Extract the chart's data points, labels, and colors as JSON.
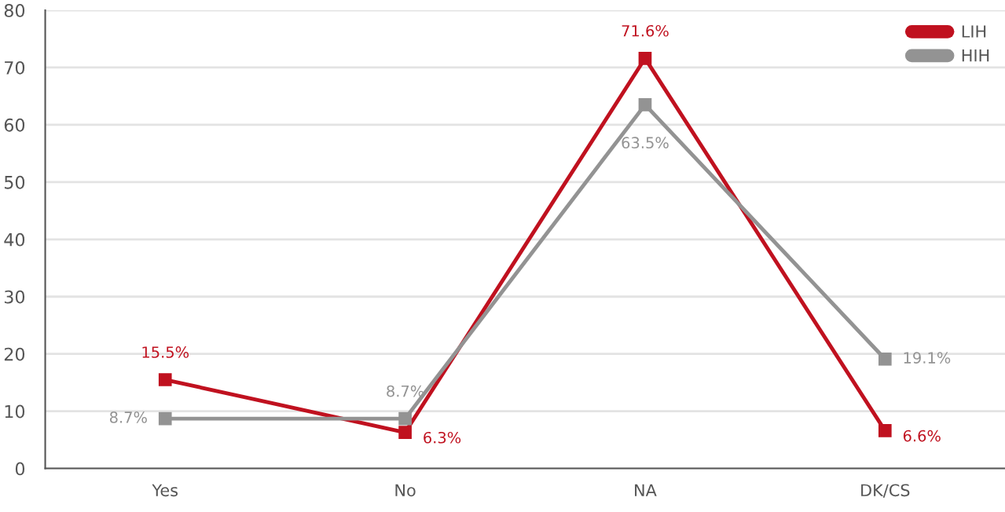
{
  "chart_data": {
    "type": "line",
    "categories": [
      "Yes",
      "No",
      "NA",
      "DK/CS"
    ],
    "series": [
      {
        "name": "LIH",
        "color": "#c0111f",
        "values": [
          15.5,
          6.3,
          71.6,
          6.6
        ],
        "value_labels": [
          "15.5%",
          "6.3%",
          "71.6%",
          "6.6%"
        ]
      },
      {
        "name": "HIH",
        "color": "#939393",
        "values": [
          8.7,
          8.7,
          63.5,
          19.1
        ],
        "value_labels": [
          "8.7%",
          "8.7%",
          "63.5%",
          "19.1%"
        ]
      }
    ],
    "ylim": [
      0,
      80
    ],
    "yticks": [
      0,
      10,
      20,
      30,
      40,
      50,
      60,
      70,
      80
    ],
    "grid": "y",
    "legend": "top right",
    "marker": "square",
    "line_style": "solid"
  }
}
